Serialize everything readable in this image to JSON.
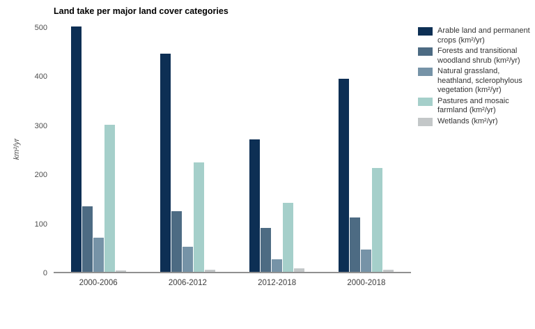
{
  "chart_data": {
    "type": "bar",
    "title": "Land take per major land cover categories",
    "xlabel": "",
    "ylabel": "km²/yr",
    "ylim": [
      0,
      500
    ],
    "yticks": [
      0,
      100,
      200,
      300,
      400,
      500
    ],
    "grid": false,
    "legend_position": "right",
    "axis_line_color": "#909090",
    "categories": [
      "2000-2006",
      "2006-2012",
      "2012-2018",
      "2000-2018"
    ],
    "series": [
      {
        "name": "Arable land and permanent crops (km²/yr)",
        "color": "#0d2f54",
        "values": [
          500,
          445,
          270,
          394
        ]
      },
      {
        "name": "Forests and transitional woodland shrub (km²/yr)",
        "color": "#4d6b83",
        "values": [
          133,
          123,
          89,
          111
        ]
      },
      {
        "name": "Natural grassland, heathland, sclerophylous vegetation (km²/yr)",
        "color": "#7693a7",
        "values": [
          70,
          51,
          25,
          46
        ]
      },
      {
        "name": "Pastures and mosaic farmland (km²/yr)",
        "color": "#a5cfca",
        "values": [
          300,
          223,
          140,
          212
        ]
      },
      {
        "name": "Wetlands (km²/yr)",
        "color": "#c3c7c8",
        "values": [
          2,
          4,
          7,
          4
        ]
      }
    ]
  }
}
